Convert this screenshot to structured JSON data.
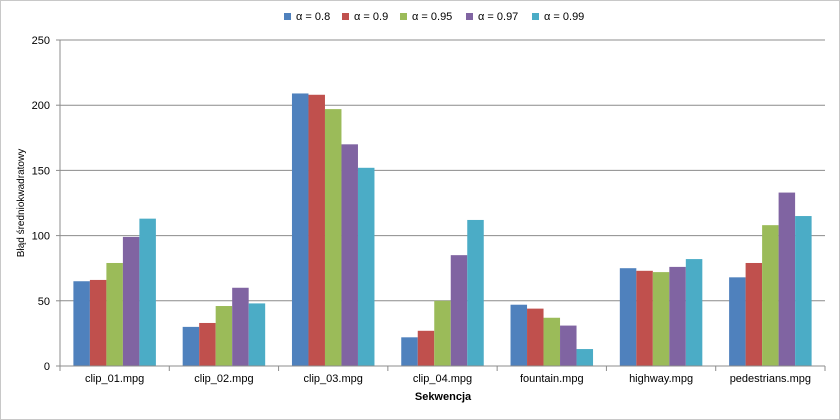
{
  "chart_data": {
    "type": "bar",
    "categories": [
      "clip_01.mpg",
      "clip_02.mpg",
      "clip_03.mpg",
      "clip_04.mpg",
      "fountain.mpg",
      "highway.mpg",
      "pedestrians.mpg"
    ],
    "series": [
      {
        "name": "α = 0.8",
        "color": "#4f81bd",
        "values": [
          65,
          30,
          209,
          22,
          47,
          75,
          68
        ]
      },
      {
        "name": "α = 0.9",
        "color": "#c0504d",
        "values": [
          66,
          33,
          208,
          27,
          44,
          73,
          79
        ]
      },
      {
        "name": "α = 0.95",
        "color": "#9bbb59",
        "values": [
          79,
          46,
          197,
          50,
          37,
          72,
          108
        ]
      },
      {
        "name": "α = 0.97",
        "color": "#8064a2",
        "values": [
          99,
          60,
          170,
          85,
          31,
          76,
          133
        ]
      },
      {
        "name": "α = 0.99",
        "color": "#4bacc6",
        "values": [
          113,
          48,
          152,
          112,
          13,
          82,
          115
        ]
      }
    ],
    "xlabel": "Sekwencja",
    "ylabel": "Błąd średniokwadratowy",
    "ylim": [
      0,
      250
    ],
    "yticks": [
      "0",
      "50",
      "100",
      "150",
      "200",
      "250"
    ],
    "grid": true,
    "legend_position": "top-center"
  }
}
